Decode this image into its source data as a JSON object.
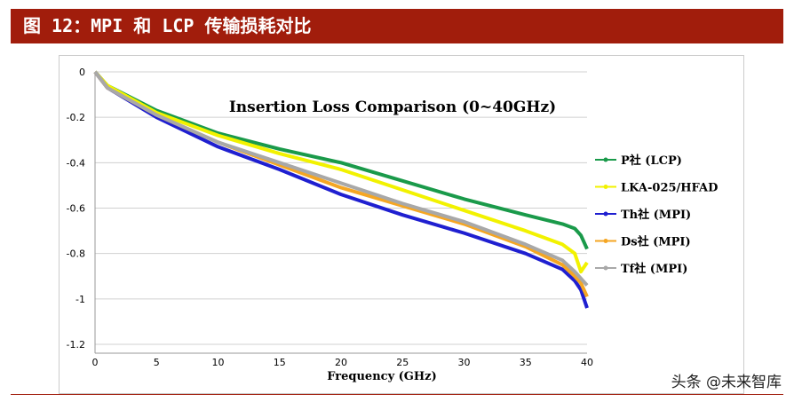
{
  "header": {
    "title": "图 12：MPI 和 LCP 传输损耗对比"
  },
  "watermark": "头条 @未来智库",
  "chart_data": {
    "type": "line",
    "title": "Insertion Loss Comparison (0~40GHz)",
    "xlabel": "Frequency (GHz)",
    "ylabel": "",
    "xlim": [
      0,
      40
    ],
    "ylim": [
      -1.2,
      0
    ],
    "xticks": [
      0,
      5,
      10,
      15,
      20,
      25,
      30,
      35,
      40
    ],
    "yticks": [
      0,
      -0.2,
      -0.4,
      -0.6,
      -0.8,
      -1,
      -1.2
    ],
    "grid": "horizontal",
    "legend": "right",
    "x": [
      0,
      1,
      5,
      10,
      15,
      20,
      25,
      30,
      35,
      38,
      39,
      39.5,
      40
    ],
    "series": [
      {
        "name": "P社 (LCP)",
        "color": "#1a9a4a",
        "values": [
          0,
          -0.06,
          -0.17,
          -0.27,
          -0.34,
          -0.4,
          -0.48,
          -0.56,
          -0.63,
          -0.67,
          -0.69,
          -0.72,
          -0.78
        ]
      },
      {
        "name": "LKA-025/HFAD",
        "color": "#f2f200",
        "values": [
          0,
          -0.06,
          -0.18,
          -0.28,
          -0.36,
          -0.43,
          -0.52,
          -0.61,
          -0.7,
          -0.76,
          -0.8,
          -0.88,
          -0.84
        ]
      },
      {
        "name": "Th社 (MPI)",
        "color": "#1f1fd0",
        "values": [
          0,
          -0.07,
          -0.2,
          -0.33,
          -0.43,
          -0.54,
          -0.63,
          -0.71,
          -0.8,
          -0.87,
          -0.92,
          -0.96,
          -1.04
        ]
      },
      {
        "name": "Ds社 (MPI)",
        "color": "#f5a623",
        "values": [
          0,
          -0.07,
          -0.19,
          -0.31,
          -0.41,
          -0.51,
          -0.59,
          -0.67,
          -0.77,
          -0.85,
          -0.9,
          -0.93,
          -0.99
        ]
      },
      {
        "name": "Tf社 (MPI)",
        "color": "#a8a8a8",
        "values": [
          0,
          -0.07,
          -0.19,
          -0.31,
          -0.4,
          -0.49,
          -0.58,
          -0.66,
          -0.76,
          -0.83,
          -0.88,
          -0.91,
          -0.94
        ]
      }
    ]
  }
}
